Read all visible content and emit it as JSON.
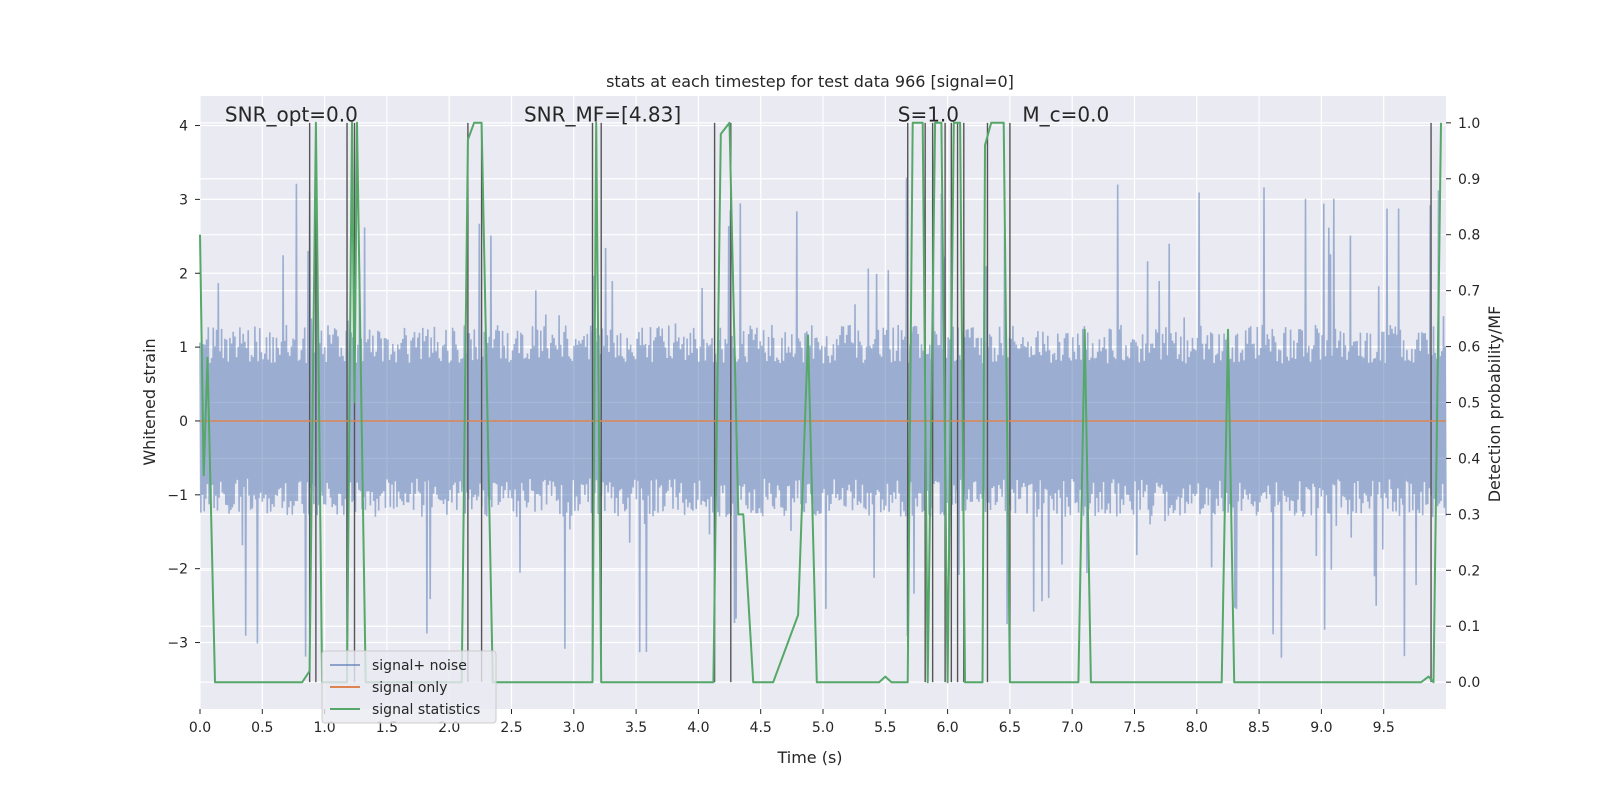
{
  "chart_data": {
    "type": "line",
    "title": "stats at each timestep for test data 966 [signal=0]",
    "xlabel": "Time (s)",
    "ylabel": "Whitened strain",
    "y2label": "Detection probability/MF",
    "xlim": [
      0,
      10
    ],
    "ylim": [
      -3.9,
      4.4
    ],
    "y2lim": [
      -0.048,
      1.048
    ],
    "x_ticks": [
      0.0,
      0.5,
      1.0,
      1.5,
      2.0,
      2.5,
      3.0,
      3.5,
      4.0,
      4.5,
      5.0,
      5.5,
      6.0,
      6.5,
      7.0,
      7.5,
      8.0,
      8.5,
      9.0,
      9.5
    ],
    "x_tick_labels": [
      "0.0",
      "0.5",
      "1.0",
      "1.5",
      "2.0",
      "2.5",
      "3.0",
      "3.5",
      "4.0",
      "4.5",
      "5.0",
      "5.5",
      "6.0",
      "6.5",
      "7.0",
      "7.5",
      "8.0",
      "8.5",
      "9.0",
      "9.5"
    ],
    "y_ticks": [
      4,
      3,
      2,
      1,
      0,
      -1,
      -2,
      -3
    ],
    "y_tick_labels": [
      "4",
      "3",
      "2",
      "1",
      "0",
      "−1",
      "−2",
      "−3"
    ],
    "y2_ticks": [
      1.0,
      0.9,
      0.8,
      0.7,
      0.6,
      0.5,
      0.4,
      0.3,
      0.2,
      0.1,
      0.0
    ],
    "y2_tick_labels": [
      "1.0",
      "0.9",
      "0.8",
      "0.7",
      "0.6",
      "0.5",
      "0.4",
      "0.3",
      "0.2",
      "0.1",
      "0.0"
    ],
    "grid": true,
    "legend_position": "lower-left",
    "annotations": [
      {
        "x": 0.2,
        "y": 4.15,
        "text": "SNR_opt=0.0"
      },
      {
        "x": 2.6,
        "y": 4.15,
        "text": "SNR_MF=[4.83]"
      },
      {
        "x": 5.6,
        "y": 4.15,
        "text": "S=1.0"
      },
      {
        "x": 6.6,
        "y": 4.15,
        "text": "M_c=0.0"
      }
    ],
    "series": [
      {
        "name": "signal+ noise",
        "color": "#4c72b0",
        "axis": "left",
        "style": "noise",
        "envelope_low": -1.3,
        "envelope_high": 1.3,
        "typical_peak": 3.3,
        "approx_range": [
          -3.6,
          4.0
        ]
      },
      {
        "name": "signal only",
        "color": "#dd8452",
        "axis": "left",
        "x": [
          0,
          10
        ],
        "y": [
          0,
          0
        ]
      },
      {
        "name": "signal statistics",
        "color": "#55a868",
        "axis": "right",
        "x": [
          0.0,
          0.03,
          0.06,
          0.12,
          0.18,
          0.5,
          0.82,
          0.88,
          0.93,
          0.98,
          1.18,
          1.22,
          1.24,
          1.26,
          1.33,
          2.1,
          2.15,
          2.2,
          2.26,
          2.35,
          3.15,
          3.18,
          3.22,
          4.12,
          4.18,
          4.25,
          4.32,
          4.36,
          4.44,
          4.6,
          4.8,
          4.88,
          4.95,
          5.45,
          5.5,
          5.55,
          5.68,
          5.72,
          5.8,
          5.84,
          5.9,
          5.95,
          6.0,
          6.05,
          6.1,
          6.14,
          6.2,
          6.28,
          6.3,
          6.35,
          6.45,
          6.5,
          7.05,
          7.1,
          7.15,
          8.2,
          8.25,
          8.3,
          9.8,
          9.86,
          9.9,
          9.96
        ],
        "y": [
          0.8,
          0.37,
          0.58,
          0.0,
          0.0,
          0.0,
          0.0,
          0.02,
          1.0,
          0.0,
          0.0,
          1.0,
          0.5,
          1.0,
          0.0,
          0.0,
          0.97,
          1.0,
          1.0,
          0.0,
          0.0,
          1.0,
          0.0,
          0.0,
          0.98,
          1.0,
          0.3,
          0.3,
          0.0,
          0.0,
          0.12,
          0.62,
          0.0,
          0.0,
          0.01,
          0.0,
          0.0,
          1.0,
          1.0,
          0.0,
          1.0,
          1.0,
          0.0,
          1.0,
          1.0,
          0.0,
          0.0,
          0.0,
          0.96,
          1.0,
          1.0,
          0.0,
          0.0,
          0.63,
          0.0,
          0.0,
          0.63,
          0.0,
          0.0,
          0.01,
          0.0,
          1.0
        ]
      }
    ],
    "vertical_lines": [
      0.88,
      0.93,
      1.18,
      1.24,
      2.15,
      2.26,
      3.15,
      3.22,
      4.13,
      4.26,
      5.68,
      5.82,
      5.88,
      5.98,
      6.03,
      6.08,
      6.13,
      6.32,
      6.5,
      9.88
    ]
  }
}
